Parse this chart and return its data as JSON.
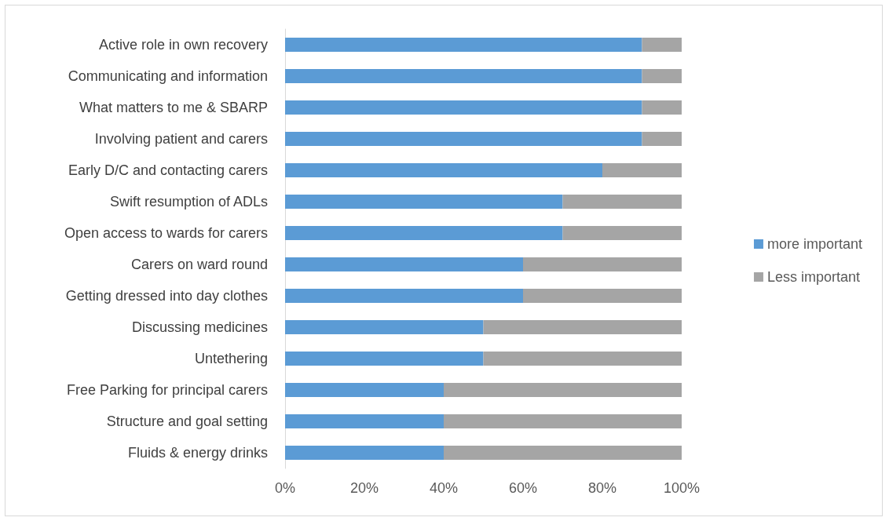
{
  "chart_data": {
    "type": "bar",
    "orientation": "horizontal",
    "stacked": true,
    "categories": [
      "Active role in own recovery",
      "Communicating and information",
      "What matters to me & SBARP",
      "Involving patient and carers",
      "Early D/C and contacting carers",
      "Swift resumption of ADLs",
      "Open access to wards for carers",
      "Carers on ward round",
      "Getting dressed into day clothes",
      "Discussing medicines",
      "Untethering",
      "Free Parking for principal carers",
      "Structure and goal setting",
      "Fluids & energy drinks"
    ],
    "series": [
      {
        "name": "more important",
        "color": "#5b9bd5",
        "values": [
          90,
          90,
          90,
          90,
          80,
          70,
          70,
          60,
          60,
          50,
          50,
          40,
          40,
          40
        ]
      },
      {
        "name": "Less important",
        "color": "#a5a5a5",
        "values": [
          10,
          10,
          10,
          10,
          20,
          30,
          30,
          40,
          40,
          50,
          50,
          60,
          60,
          60
        ]
      }
    ],
    "xlim": [
      0,
      100
    ],
    "xticks": [
      {
        "value": 0,
        "label": "0%"
      },
      {
        "value": 20,
        "label": "20%"
      },
      {
        "value": 40,
        "label": "40%"
      },
      {
        "value": 60,
        "label": "60%"
      },
      {
        "value": 80,
        "label": "80%"
      },
      {
        "value": 100,
        "label": "100%"
      }
    ],
    "grid": false,
    "legend": "right"
  }
}
